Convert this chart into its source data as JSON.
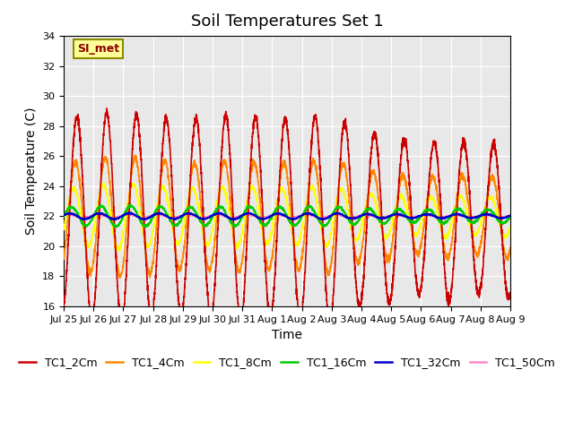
{
  "title": "Soil Temperatures Set 1",
  "xlabel": "Time",
  "ylabel": "Soil Temperature (C)",
  "ylim": [
    16,
    34
  ],
  "annotation": "SI_met",
  "tick_labels": [
    "Jul 25",
    "Jul 26",
    "Jul 27",
    "Jul 28",
    "Jul 29",
    "Jul 30",
    "Jul 31",
    "Aug 1",
    "Aug 2",
    "Aug 3",
    "Aug 4",
    "Aug 5",
    "Aug 6",
    "Aug 7",
    "Aug 8",
    "Aug 9"
  ],
  "series": [
    {
      "label": "TC1_2Cm",
      "color": "#cc0000",
      "lw": 1.2
    },
    {
      "label": "TC1_4Cm",
      "color": "#ff8800",
      "lw": 1.2
    },
    {
      "label": "TC1_8Cm",
      "color": "#ffff00",
      "lw": 1.2
    },
    {
      "label": "TC1_16Cm",
      "color": "#00cc00",
      "lw": 1.2
    },
    {
      "label": "TC1_32Cm",
      "color": "#0000cc",
      "lw": 1.2
    },
    {
      "label": "TC1_50Cm",
      "color": "#ff88cc",
      "lw": 1.2
    }
  ],
  "bg_color": "#e8e8e8",
  "fig_bg": "#ffffff",
  "grid_color": "#ffffff",
  "title_fontsize": 13,
  "axis_label_fontsize": 10,
  "tick_fontsize": 8,
  "legend_fontsize": 9,
  "n_points": 3360,
  "days": 15,
  "amp_2cm": [
    6.5,
    6.8,
    7.0,
    6.6,
    6.5,
    6.7,
    6.8,
    6.5,
    6.7,
    6.9,
    5.8,
    5.6,
    4.9,
    5.5,
    4.9,
    5.2
  ],
  "amp_4cm": [
    3.5,
    3.8,
    4.0,
    3.8,
    3.5,
    3.6,
    3.7,
    3.5,
    3.6,
    3.8,
    3.0,
    2.9,
    2.5,
    2.8,
    2.5,
    2.8
  ],
  "amp_8cm": [
    1.8,
    2.0,
    2.2,
    2.0,
    1.8,
    1.9,
    2.0,
    1.8,
    1.9,
    2.0,
    1.5,
    1.4,
    1.2,
    1.4,
    1.2,
    1.4
  ],
  "amp_16cm": [
    0.6,
    0.65,
    0.7,
    0.65,
    0.6,
    0.62,
    0.65,
    0.6,
    0.62,
    0.65,
    0.5,
    0.48,
    0.42,
    0.48,
    0.42,
    0.48
  ],
  "amp_32cm": [
    0.18,
    0.19,
    0.2,
    0.19,
    0.18,
    0.19,
    0.2,
    0.18,
    0.19,
    0.2,
    0.15,
    0.14,
    0.12,
    0.14,
    0.12,
    0.14
  ],
  "amp_50cm": [
    0.08,
    0.08,
    0.09,
    0.08,
    0.08,
    0.08,
    0.09,
    0.08,
    0.08,
    0.09,
    0.07,
    0.06,
    0.06,
    0.06,
    0.06,
    0.07
  ],
  "base_temp": 22.0,
  "phase_2cm": -1.2,
  "phase_4cm": -0.9,
  "phase_8cm": -0.5,
  "phase_16cm": 0.0,
  "phase_32cm": 0.3,
  "phase_50cm": 0.5
}
